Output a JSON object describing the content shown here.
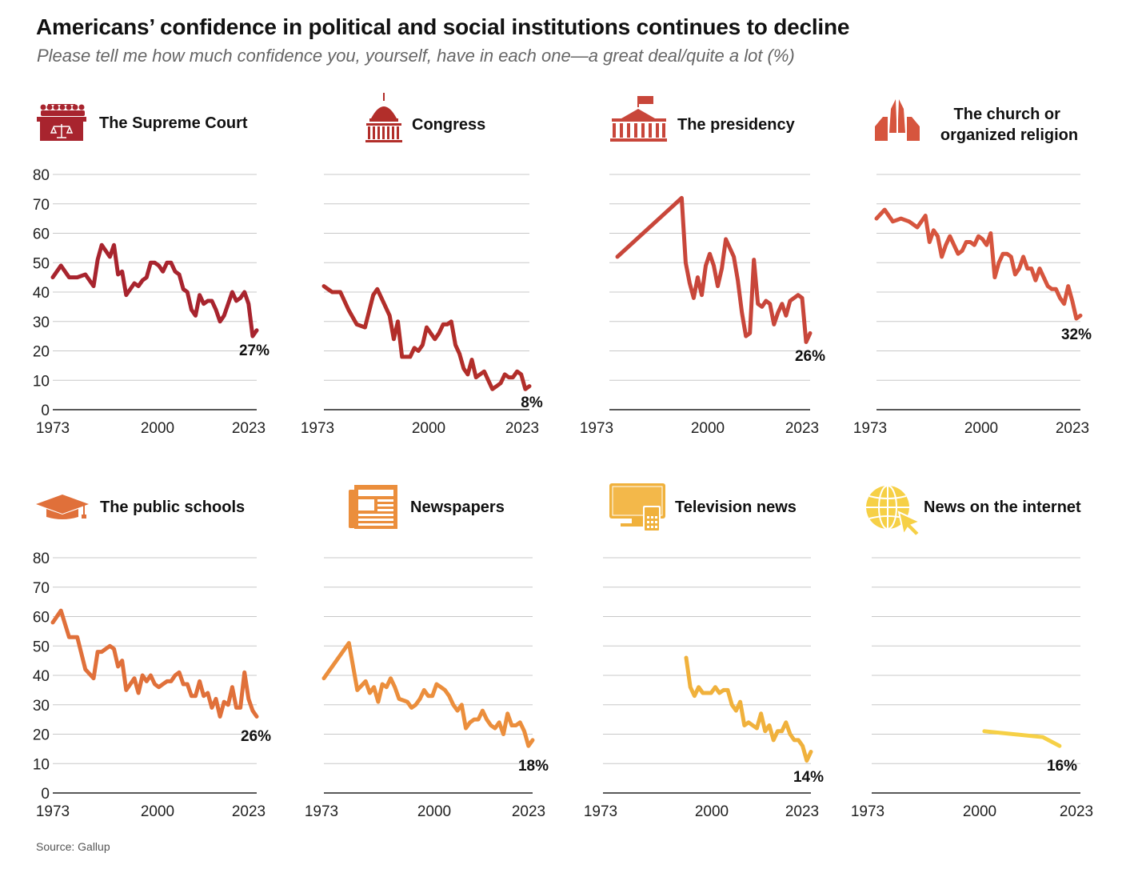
{
  "title": "Americans’ confidence in political and social institutions continues to decline",
  "subtitle": "Please tell me how much confidence you, yourself, have in each one—a great deal/quite a lot (%)",
  "source": "Source: Gallup",
  "icons": [
    "supreme-court-icon",
    "capitol-icon",
    "white-house-icon",
    "praying-hands-icon",
    "graduation-cap-icon",
    "newspaper-icon",
    "tv-icon",
    "globe-cursor-icon"
  ],
  "chart_data": [
    {
      "type": "line",
      "title": "The Supreme Court",
      "color": "#A8242E",
      "ylim": [
        0,
        80
      ],
      "yticks": [
        0,
        10,
        20,
        30,
        40,
        50,
        60,
        70,
        80
      ],
      "xticks": [
        "1973",
        "2000",
        "2023"
      ],
      "end_label": "27%",
      "x": [
        1973,
        1975,
        1977,
        1979,
        1981,
        1983,
        1984,
        1985,
        1986,
        1987,
        1988,
        1989,
        1990,
        1991,
        1993,
        1994,
        1995,
        1996,
        1997,
        1998,
        1999,
        2000,
        2001,
        2002,
        2003,
        2004,
        2005,
        2006,
        2007,
        2008,
        2009,
        2010,
        2011,
        2012,
        2013,
        2014,
        2015,
        2016,
        2017,
        2018,
        2019,
        2020,
        2021,
        2022,
        2023
      ],
      "y": [
        45,
        49,
        45,
        45,
        46,
        42,
        51,
        56,
        54,
        52,
        56,
        46,
        47,
        39,
        43,
        42,
        44,
        45,
        50,
        50,
        49,
        47,
        50,
        50,
        47,
        46,
        41,
        40,
        34,
        32,
        39,
        36,
        37,
        37,
        34,
        30,
        32,
        36,
        40,
        37,
        38,
        40,
        36,
        25,
        27
      ]
    },
    {
      "type": "line",
      "title": "Congress",
      "color": "#B22E2A",
      "ylim": [
        0,
        80
      ],
      "yticks": [
        0,
        10,
        20,
        30,
        40,
        50,
        60,
        70,
        80
      ],
      "xticks": [
        "1973",
        "2000",
        "2023"
      ],
      "end_label": "8%",
      "x": [
        1973,
        1974,
        1975,
        1977,
        1979,
        1981,
        1983,
        1985,
        1986,
        1987,
        1988,
        1989,
        1990,
        1991,
        1992,
        1993,
        1994,
        1995,
        1996,
        1997,
        1998,
        1999,
        2000,
        2001,
        2002,
        2003,
        2004,
        2005,
        2006,
        2007,
        2008,
        2009,
        2010,
        2011,
        2012,
        2013,
        2014,
        2015,
        2016,
        2017,
        2018,
        2019,
        2020,
        2021,
        2022,
        2023
      ],
      "y": [
        42,
        41,
        40,
        40,
        34,
        29,
        28,
        39,
        41,
        38,
        35,
        32,
        24,
        30,
        18,
        18,
        18,
        21,
        20,
        22,
        28,
        26,
        24,
        26,
        29,
        29,
        30,
        22,
        19,
        14,
        12,
        17,
        11,
        12,
        13,
        10,
        7,
        8,
        9,
        12,
        11,
        11,
        13,
        12,
        7,
        8
      ]
    },
    {
      "type": "line",
      "title": "The presidency",
      "color": "#C8463A",
      "ylim": [
        0,
        80
      ],
      "yticks": [
        0,
        10,
        20,
        30,
        40,
        50,
        60,
        70,
        80
      ],
      "xticks": [
        "1973",
        "2000",
        "2023"
      ],
      "end_label": "26%",
      "x": [
        1975,
        1991,
        1992,
        1993,
        1994,
        1995,
        1996,
        1997,
        1998,
        1999,
        2000,
        2001,
        2002,
        2003,
        2004,
        2005,
        2006,
        2007,
        2008,
        2009,
        2010,
        2011,
        2012,
        2013,
        2014,
        2015,
        2016,
        2017,
        2018,
        2019,
        2020,
        2021,
        2022,
        2023
      ],
      "y": [
        52,
        72,
        50,
        43,
        38,
        45,
        39,
        49,
        53,
        49,
        42,
        48,
        58,
        55,
        52,
        44,
        33,
        25,
        26,
        51,
        36,
        35,
        37,
        36,
        29,
        33,
        36,
        32,
        37,
        38,
        39,
        38,
        23,
        26
      ]
    },
    {
      "type": "line",
      "title": "The church or organized religion",
      "color": "#D6553E",
      "ylim": [
        0,
        80
      ],
      "yticks": [
        0,
        10,
        20,
        30,
        40,
        50,
        60,
        70,
        80
      ],
      "xticks": [
        "1973",
        "2000",
        "2023"
      ],
      "end_label": "32%",
      "x": [
        1973,
        1975,
        1977,
        1979,
        1981,
        1983,
        1984,
        1985,
        1986,
        1987,
        1988,
        1989,
        1990,
        1991,
        1993,
        1994,
        1995,
        1996,
        1997,
        1998,
        1999,
        2000,
        2001,
        2002,
        2003,
        2004,
        2005,
        2006,
        2007,
        2008,
        2009,
        2010,
        2011,
        2012,
        2013,
        2014,
        2015,
        2016,
        2017,
        2018,
        2019,
        2020,
        2021,
        2022,
        2023
      ],
      "y": [
        65,
        68,
        64,
        65,
        64,
        62,
        64,
        66,
        57,
        61,
        59,
        52,
        56,
        59,
        53,
        54,
        57,
        57,
        56,
        59,
        58,
        56,
        60,
        45,
        50,
        53,
        53,
        52,
        46,
        48,
        52,
        48,
        48,
        44,
        48,
        45,
        42,
        41,
        41,
        38,
        36,
        42,
        37,
        31,
        32
      ]
    },
    {
      "type": "line",
      "title": "The public schools",
      "color": "#E0703A",
      "ylim": [
        0,
        80
      ],
      "yticks": [
        0,
        10,
        20,
        30,
        40,
        50,
        60,
        70,
        80
      ],
      "xticks": [
        "1973",
        "2000",
        "2023"
      ],
      "end_label": "26%",
      "x": [
        1973,
        1975,
        1977,
        1979,
        1981,
        1983,
        1984,
        1985,
        1986,
        1987,
        1988,
        1989,
        1990,
        1991,
        1993,
        1994,
        1995,
        1996,
        1997,
        1998,
        1999,
        2000,
        2001,
        2002,
        2003,
        2004,
        2005,
        2006,
        2007,
        2008,
        2009,
        2010,
        2011,
        2012,
        2013,
        2014,
        2015,
        2016,
        2017,
        2018,
        2019,
        2020,
        2021,
        2022,
        2023
      ],
      "y": [
        58,
        62,
        53,
        53,
        42,
        39,
        48,
        48,
        49,
        50,
        49,
        43,
        45,
        35,
        39,
        34,
        40,
        38,
        40,
        37,
        36,
        37,
        38,
        38,
        40,
        41,
        37,
        37,
        33,
        33,
        38,
        33,
        34,
        29,
        32,
        26,
        31,
        30,
        36,
        29,
        29,
        41,
        32,
        28,
        26
      ]
    },
    {
      "type": "line",
      "title": "Newspapers",
      "color": "#EB8E3C",
      "ylim": [
        0,
        80
      ],
      "yticks": [
        0,
        10,
        20,
        30,
        40,
        50,
        60,
        70,
        80
      ],
      "xticks": [
        "1973",
        "2000",
        "2023"
      ],
      "end_label": "18%",
      "x": [
        1973,
        1979,
        1981,
        1983,
        1984,
        1985,
        1986,
        1987,
        1988,
        1989,
        1990,
        1991,
        1993,
        1994,
        1995,
        1996,
        1997,
        1998,
        1999,
        2000,
        2001,
        2002,
        2003,
        2004,
        2005,
        2006,
        2007,
        2008,
        2009,
        2010,
        2011,
        2012,
        2013,
        2014,
        2015,
        2016,
        2017,
        2018,
        2019,
        2020,
        2021,
        2022,
        2023
      ],
      "y": [
        39,
        51,
        35,
        38,
        34,
        36,
        31,
        37,
        36,
        39,
        36,
        32,
        31,
        29,
        30,
        32,
        35,
        33,
        33,
        37,
        36,
        35,
        33,
        30,
        28,
        30,
        22,
        24,
        25,
        25,
        28,
        25,
        23,
        22,
        24,
        20,
        27,
        23,
        23,
        24,
        21,
        16,
        18
      ]
    },
    {
      "type": "line",
      "title": "Television news",
      "color": "#F0B13C",
      "ylim": [
        0,
        80
      ],
      "yticks": [
        0,
        10,
        20,
        30,
        40,
        50,
        60,
        70,
        80
      ],
      "xticks": [
        "1973",
        "2000",
        "2023"
      ],
      "end_label": "14%",
      "x": [
        1993,
        1994,
        1995,
        1996,
        1997,
        1998,
        1999,
        2000,
        2001,
        2002,
        2003,
        2004,
        2005,
        2006,
        2007,
        2008,
        2009,
        2010,
        2011,
        2012,
        2013,
        2014,
        2015,
        2016,
        2017,
        2018,
        2019,
        2020,
        2021,
        2022,
        2023
      ],
      "y": [
        46,
        36,
        33,
        36,
        34,
        34,
        34,
        36,
        34,
        35,
        35,
        30,
        28,
        31,
        23,
        24,
        23,
        22,
        27,
        21,
        23,
        18,
        21,
        21,
        24,
        20,
        18,
        18,
        16,
        11,
        14
      ]
    },
    {
      "type": "line",
      "title": "News on the internet",
      "color": "#F6D046",
      "ylim": [
        0,
        80
      ],
      "yticks": [
        0,
        10,
        20,
        30,
        40,
        50,
        60,
        70,
        80
      ],
      "xticks": [
        "1973",
        "2000",
        "2023"
      ],
      "end_label": "16%",
      "x": [
        2000,
        2014,
        2018
      ],
      "y": [
        21,
        19,
        16
      ]
    }
  ]
}
